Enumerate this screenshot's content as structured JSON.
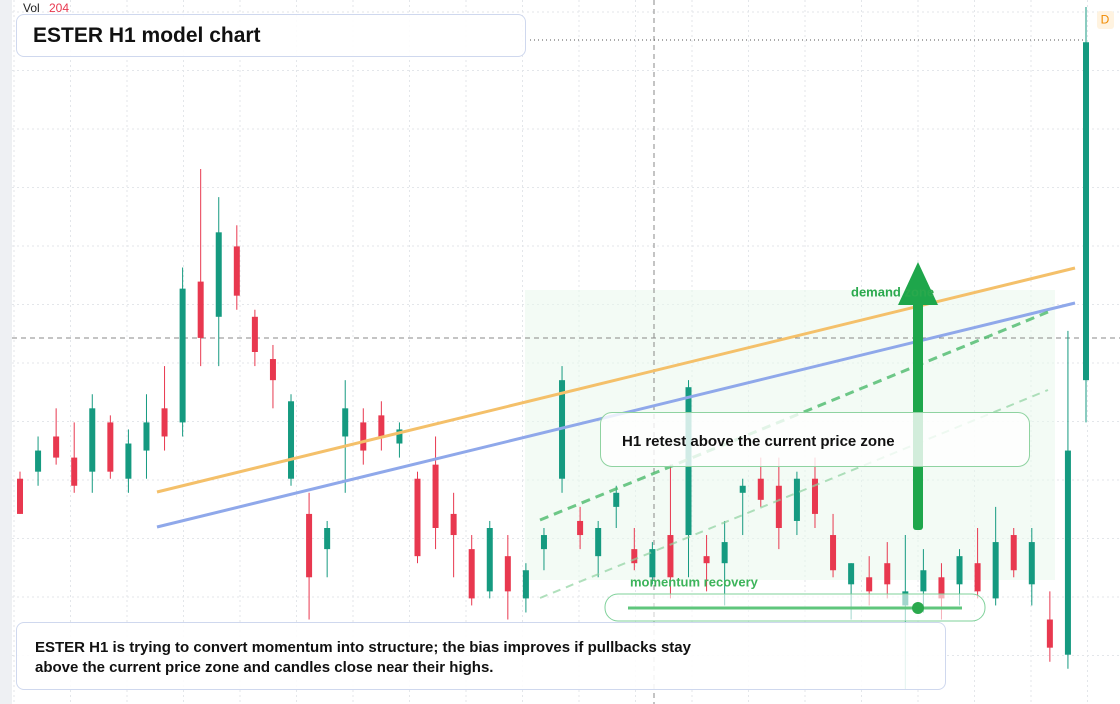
{
  "chart_data": {
    "type": "candlestick",
    "title": "ESTER H1 model chart",
    "volume_label": "Vol",
    "volume_value": 204,
    "badge": "D",
    "grid": true,
    "ylim": [
      0,
      100
    ],
    "up_color": "#159a80",
    "down_color": "#e8384f",
    "open": [
      32,
      33,
      38,
      35,
      33,
      40,
      32,
      36,
      42,
      40,
      60,
      55,
      65,
      55,
      49,
      32,
      27,
      22,
      38,
      40,
      41,
      37,
      32,
      34,
      27,
      22,
      16,
      21,
      15,
      22,
      32,
      26,
      21,
      28,
      22,
      18,
      24,
      24,
      21,
      20,
      30,
      32,
      31,
      26,
      32,
      24,
      17,
      18,
      20,
      14,
      16,
      18,
      17,
      20,
      15,
      24,
      17,
      12,
      7,
      46
    ],
    "high": [
      33,
      38,
      42,
      40,
      44,
      41,
      39,
      44,
      48,
      62,
      76,
      72,
      68,
      56,
      51,
      44,
      30,
      26,
      46,
      42,
      43,
      40,
      33,
      38,
      30,
      24,
      26,
      24,
      20,
      25,
      48,
      28,
      26,
      31,
      25,
      23,
      34,
      46,
      24,
      26,
      32,
      35,
      35,
      33,
      35,
      27,
      20,
      21,
      23,
      24,
      22,
      20,
      22,
      25,
      28,
      25,
      25,
      16,
      53,
      99
    ],
    "low": [
      27,
      31,
      34,
      30,
      30,
      32,
      30,
      32,
      36,
      38,
      48,
      48,
      56,
      48,
      42,
      31,
      12,
      18,
      30,
      34,
      36,
      35,
      20,
      22,
      18,
      14,
      15,
      12,
      13,
      19,
      30,
      22,
      18,
      25,
      19,
      17,
      15,
      18,
      16,
      14,
      24,
      28,
      22,
      24,
      25,
      18,
      12,
      14,
      15,
      2,
      13,
      12,
      14,
      15,
      14,
      18,
      14,
      6,
      5,
      40
    ],
    "close": [
      27,
      36,
      35,
      31,
      42,
      33,
      37,
      40,
      38,
      59,
      52,
      67,
      58,
      50,
      46,
      43,
      18,
      25,
      42,
      36,
      38,
      39,
      21,
      25,
      24,
      15,
      25,
      16,
      19,
      24,
      46,
      24,
      25,
      30,
      20,
      22,
      18,
      45,
      20,
      23,
      31,
      29,
      25,
      32,
      27,
      19,
      20,
      16,
      17,
      16,
      19,
      15,
      21,
      16,
      23,
      19,
      23,
      8,
      36,
      94
    ],
    "annotations": [
      "demand zone",
      "H1 retest above the current price zone",
      "momentum recovery"
    ],
    "note": "ESTER H1 is trying to convert momentum into structure; the bias improves if pullbacks stay above the current price zone and candles close near their highs."
  }
}
